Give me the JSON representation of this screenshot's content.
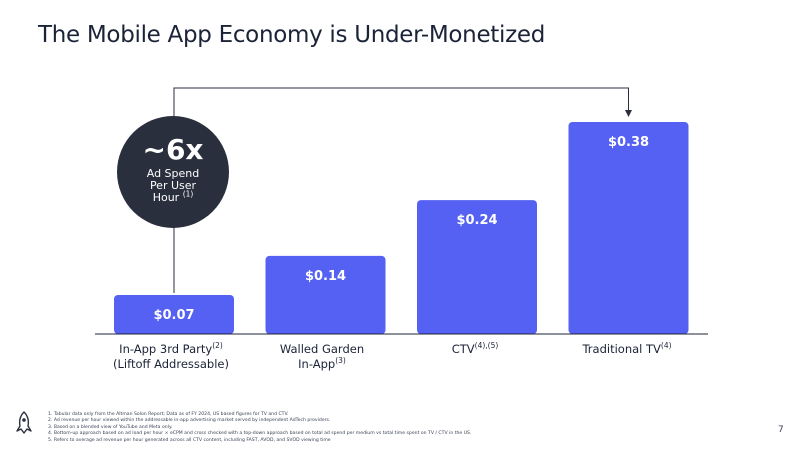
{
  "title": "The Mobile App Economy is Under-Monetized",
  "callout": {
    "value": "~6x",
    "line1": "Ad Spend",
    "line2": "Per User",
    "line3": "Hour",
    "sup": "(1)"
  },
  "chart_data": {
    "type": "bar",
    "categories": [
      "In-App 3rd Party (Liftoff Addressable)",
      "Walled Garden In-App",
      "CTV",
      "Traditional TV"
    ],
    "values": [
      0.07,
      0.14,
      0.24,
      0.38
    ],
    "value_labels": [
      "$0.07",
      "$0.14",
      "$0.24",
      "$0.38"
    ],
    "ylim": [
      0,
      0.38
    ],
    "grid": false,
    "bar_color": "#5461f2",
    "labels": [
      {
        "line1": "In-App 3rd Party",
        "sup1": "(2)",
        "line2": "(Liftoff Addressable)",
        "sup2": ""
      },
      {
        "line1": "Walled Garden",
        "sup1": "",
        "line2": "In-App",
        "sup2": "(3)"
      },
      {
        "line1": "CTV",
        "sup1": "(4),(5)",
        "line2": "",
        "sup2": ""
      },
      {
        "line1": "Traditional TV",
        "sup1": "(4)",
        "line2": "",
        "sup2": ""
      }
    ]
  },
  "footnotes": [
    "1.  Tabular data only from the Altman Solon Report; Data as of FY 2024, US based figures for TV and CTV.",
    "2.  Ad revenue per hour viewed within the addressable in-app advertising market served by independent AdTech providers.",
    "3.  Based on a blended view of YouTube and Meta only.",
    "4.  Bottom-up approach based on ad load per hour × eCPM and cross checked with a top-down approach based on total ad spend per medium vs total time spent on TV / CTV in the US.",
    "5.  Refers to average ad revenue per hour generated across all CTV content, including FAST, AVOD, and SVOD viewing time"
  ],
  "page_number": "7",
  "colors": {
    "bar": "#5461f2",
    "bubble": "#2a2f3e",
    "text": "#1b2337"
  }
}
